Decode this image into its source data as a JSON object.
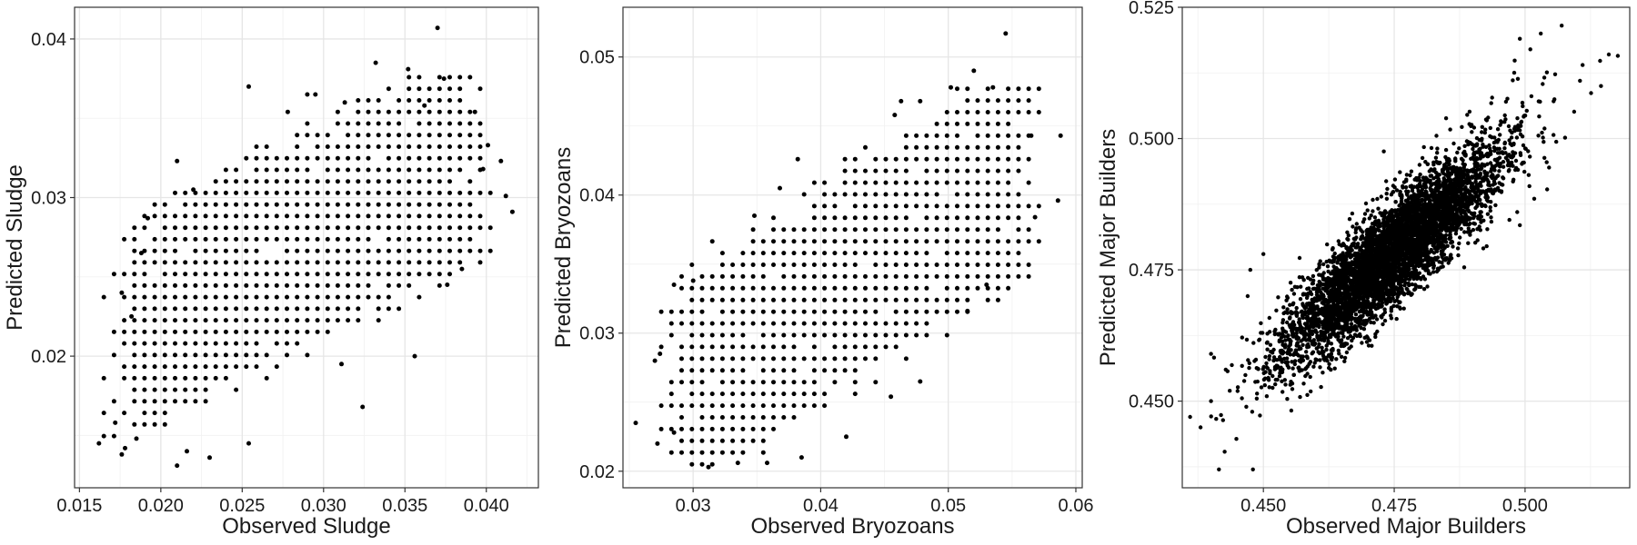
{
  "chart_data": [
    {
      "type": "scatter",
      "xlabel": "Observed Sludge",
      "ylabel": "Predicted Sludge",
      "xlim": [
        0.0147,
        0.0432
      ],
      "ylim": [
        0.0117,
        0.042
      ],
      "xticks": [
        0.015,
        0.02,
        0.025,
        0.03,
        0.035,
        0.04
      ],
      "xtick_labels": [
        "0.015",
        "0.020",
        "0.025",
        "0.030",
        "0.035",
        "0.040"
      ],
      "yticks": [
        0.02,
        0.03,
        0.04
      ],
      "ytick_labels": [
        "0.02",
        "0.03",
        "0.04"
      ],
      "grid": true,
      "points": [
        [
          0.0162,
          0.0145
        ],
        [
          0.0172,
          0.0158
        ],
        [
          0.0176,
          0.0138
        ],
        [
          0.0178,
          0.0142
        ],
        [
          0.0192,
          0.0287
        ],
        [
          0.021,
          0.0323
        ],
        [
          0.021,
          0.0131
        ],
        [
          0.0254,
          0.037
        ],
        [
          0.0254,
          0.0145
        ],
        [
          0.0278,
          0.0354
        ],
        [
          0.029,
          0.0365
        ],
        [
          0.0295,
          0.0365
        ],
        [
          0.0313,
          0.036
        ],
        [
          0.0332,
          0.0385
        ],
        [
          0.0352,
          0.0381
        ],
        [
          0.037,
          0.0407
        ],
        [
          0.0362,
          0.0358
        ],
        [
          0.0374,
          0.0375
        ],
        [
          0.0393,
          0.0354
        ],
        [
          0.0401,
          0.0333
        ],
        [
          0.0409,
          0.0323
        ],
        [
          0.0416,
          0.0291
        ],
        [
          0.0412,
          0.0301
        ],
        [
          0.0398,
          0.0318
        ],
        [
          0.0385,
          0.0255
        ],
        [
          0.0376,
          0.0245
        ],
        [
          0.0356,
          0.02
        ],
        [
          0.0324,
          0.0168
        ],
        [
          0.0311,
          0.0195
        ],
        [
          0.023,
          0.0136
        ],
        [
          0.0216,
          0.014
        ],
        [
          0.0185,
          0.0148
        ],
        [
          0.0176,
          0.024
        ],
        [
          0.0182,
          0.0225
        ],
        [
          0.0188,
          0.0265
        ],
        [
          0.022,
          0.0305
        ]
      ],
      "cloud": {
        "spacing": [
          0.000625,
          0.00073
        ],
        "x_range": [
          0.0165,
          0.0405
        ],
        "y_range": [
          0.0135,
          0.0383
        ],
        "slope": 0.5,
        "intercept": 0.0128,
        "half_width_y": 0.0078
      }
    },
    {
      "type": "scatter",
      "xlabel": "Observed Bryozoans",
      "ylabel": "Predicted Bryozoans",
      "xlim": [
        0.0245,
        0.0605
      ],
      "ylim": [
        0.0188,
        0.0536
      ],
      "xticks": [
        0.03,
        0.04,
        0.05,
        0.06
      ],
      "xtick_labels": [
        "0.03",
        "0.04",
        "0.05",
        "0.06"
      ],
      "yticks": [
        0.02,
        0.03,
        0.04,
        0.05
      ],
      "ytick_labels": [
        "0.02",
        "0.03",
        "0.04",
        "0.05"
      ],
      "grid": true,
      "points": [
        [
          0.0545,
          0.0517
        ],
        [
          0.052,
          0.049
        ],
        [
          0.0535,
          0.0478
        ],
        [
          0.0502,
          0.0478
        ],
        [
          0.0478,
          0.0468
        ],
        [
          0.0458,
          0.0458
        ],
        [
          0.0463,
          0.0468
        ],
        [
          0.0565,
          0.0443
        ],
        [
          0.0588,
          0.0443
        ],
        [
          0.0586,
          0.0396
        ],
        [
          0.0568,
          0.0384
        ],
        [
          0.053,
          0.0335
        ],
        [
          0.0515,
          0.0316
        ],
        [
          0.0478,
          0.0265
        ],
        [
          0.0455,
          0.0254
        ],
        [
          0.042,
          0.0225
        ],
        [
          0.0385,
          0.021
        ],
        [
          0.0358,
          0.0206
        ],
        [
          0.0335,
          0.0206
        ],
        [
          0.0312,
          0.0203
        ],
        [
          0.0285,
          0.0228
        ],
        [
          0.0272,
          0.022
        ],
        [
          0.0255,
          0.0235
        ],
        [
          0.027,
          0.028
        ],
        [
          0.0274,
          0.0285
        ],
        [
          0.0285,
          0.0335
        ],
        [
          0.03,
          0.0338
        ],
        [
          0.0382,
          0.0426
        ],
        [
          0.0368,
          0.0405
        ],
        [
          0.0348,
          0.0385
        ]
      ],
      "cloud": {
        "spacing": [
          0.0008,
          0.00085
        ],
        "x_range": [
          0.0275,
          0.0575
        ],
        "y_range": [
          0.0205,
          0.0485
        ],
        "slope": 0.58,
        "intercept": 0.0094,
        "half_width_y": 0.009
      }
    },
    {
      "type": "scatter",
      "xlabel": "Observed Major Builders",
      "ylabel": "Predicted Major Builders",
      "xlim": [
        0.4345,
        0.52
      ],
      "ylim": [
        0.4335,
        0.525
      ],
      "xticks": [
        0.45,
        0.475,
        0.5
      ],
      "xtick_labels": [
        "0.450",
        "0.475",
        "0.500"
      ],
      "yticks": [
        0.45,
        0.475,
        0.5,
        0.525
      ],
      "ytick_labels": [
        "0.450",
        "0.475",
        "0.500",
        "0.525"
      ],
      "grid": true,
      "points": [
        [
          0.436,
          0.447
        ],
        [
          0.438,
          0.445
        ],
        [
          0.44,
          0.45
        ],
        [
          0.4415,
          0.437
        ],
        [
          0.448,
          0.437
        ],
        [
          0.44,
          0.459
        ],
        [
          0.4428,
          0.456
        ],
        [
          0.447,
          0.47
        ],
        [
          0.507,
          0.5215
        ],
        [
          0.516,
          0.516
        ],
        [
          0.5145,
          0.51
        ],
        [
          0.5105,
          0.511
        ],
        [
          0.503,
          0.52
        ],
        [
          0.511,
          0.514
        ],
        [
          0.501,
          0.517
        ],
        [
          0.499,
          0.519
        ],
        [
          0.4985,
          0.486
        ],
        [
          0.4935,
          0.485
        ],
        [
          0.499,
          0.4835
        ],
        [
          0.4475,
          0.475
        ],
        [
          0.4495,
          0.463
        ],
        [
          0.45,
          0.478
        ]
      ],
      "cloud": {
        "count": 5000,
        "center": [
          0.4745,
          0.4782
        ],
        "slope": 0.86,
        "sd_x": 0.0105,
        "sd_y_resid": 0.0049
      }
    }
  ]
}
